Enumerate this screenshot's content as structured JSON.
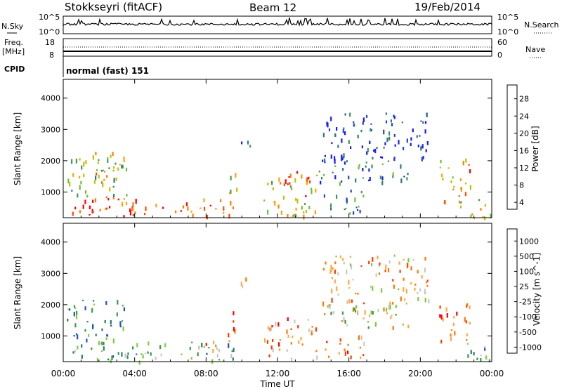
{
  "header": {
    "station": "Stokkseyri (fitACF)",
    "beam": "Beam 12",
    "date": "19/Feb/2014"
  },
  "noise_panel": {
    "left_label": "N.Sky",
    "right_label": "N.Search",
    "left_ticks": [
      "10^5",
      "10^0"
    ],
    "right_ticks": [
      "10^5",
      "10^0"
    ]
  },
  "freq_panel": {
    "left_label_1": "Freq.",
    "left_label_2": "[MHz]",
    "left_ticks": [
      "18",
      "8"
    ],
    "right_label": "Nave",
    "right_ticks": [
      "60",
      "0"
    ]
  },
  "cpid": {
    "label": "CPID",
    "mode": "normal (fast) 151"
  },
  "axes": {
    "xlabel": "Time UT",
    "ylabel": "Slant Range [km]",
    "xticks": [
      "00:00",
      "04:00",
      "08:00",
      "12:00",
      "16:00",
      "20:00",
      "00:00"
    ],
    "yticks": [
      "1000",
      "2000",
      "3000",
      "4000"
    ]
  },
  "chart_data": [
    {
      "type": "heatmap",
      "name": "power",
      "ylabel": "Slant Range [km]",
      "xlabel": "Time UT",
      "x_range_hours": [
        0,
        24
      ],
      "y_range_km": [
        180,
        4600
      ],
      "colorbar_label": "Power [dB]",
      "colorbar_ticks": [
        "28",
        "24",
        "20",
        "16",
        "12",
        "8",
        "4"
      ],
      "colorscale": [
        "#1a1aff",
        "#2a44c8",
        "#2e7d6e",
        "#3f9a55",
        "#6fbf3a",
        "#c2c000",
        "#ffa500",
        "#ff7f00",
        "#ff4a00",
        "#ff0000"
      ],
      "regions": [
        {
          "t": [
            0.0,
            5.7
          ],
          "r": [
            200,
            900
          ],
          "level": 0.85
        },
        {
          "t": [
            0.1,
            3.6
          ],
          "r": [
            900,
            2200
          ],
          "level": 0.45
        },
        {
          "t": [
            1.6,
            3.4
          ],
          "r": [
            1500,
            2300
          ],
          "level": 0.6
        },
        {
          "t": [
            6.2,
            9.6
          ],
          "r": [
            250,
            850
          ],
          "level": 0.85
        },
        {
          "t": [
            9.2,
            9.7
          ],
          "r": [
            1000,
            2100
          ],
          "level": 0.5
        },
        {
          "t": [
            9.8,
            10.5
          ],
          "r": [
            2400,
            2900
          ],
          "level": 0.15
        },
        {
          "t": [
            11.2,
            14.2
          ],
          "r": [
            250,
            1600
          ],
          "level": 0.55
        },
        {
          "t": [
            12.2,
            13.8
          ],
          "r": [
            800,
            1700
          ],
          "level": 0.85
        },
        {
          "t": [
            14.3,
            19.5
          ],
          "r": [
            1300,
            2100
          ],
          "level": 0.25
        },
        {
          "t": [
            14.5,
            20.5
          ],
          "r": [
            2000,
            3600
          ],
          "level": 0.1
        },
        {
          "t": [
            14.5,
            17.0
          ],
          "r": [
            300,
            1100
          ],
          "level": 0.3
        },
        {
          "t": [
            21.0,
            22.8
          ],
          "r": [
            700,
            2100
          ],
          "level": 0.7
        },
        {
          "t": [
            22.0,
            24.0
          ],
          "r": [
            200,
            800
          ],
          "level": 0.5
        }
      ]
    },
    {
      "type": "heatmap",
      "name": "velocity",
      "ylabel": "Slant Range [km]",
      "xlabel": "Time UT",
      "x_range_hours": [
        0,
        24
      ],
      "y_range_km": [
        180,
        4600
      ],
      "colorbar_label": "Velocity [m s^-1]",
      "colorbar_ticks": [
        "1000",
        "500",
        "100",
        "25",
        "-25",
        "-100",
        "-500",
        "-1000"
      ],
      "colorscale": [
        "#2050c0",
        "#2c7a6a",
        "#3a9a4a",
        "#7ccd3a",
        "#c8c8c8",
        "#ffaa40",
        "#ff7a00",
        "#ff3a00",
        "#ff0000"
      ],
      "regions": [
        {
          "t": [
            0.0,
            5.7
          ],
          "r": [
            200,
            900
          ],
          "v": 0.3
        },
        {
          "t": [
            0.1,
            3.6
          ],
          "r": [
            900,
            2200
          ],
          "v": 0.2
        },
        {
          "t": [
            6.2,
            9.6
          ],
          "r": [
            250,
            850
          ],
          "v": 0.3
        },
        {
          "t": [
            7.4,
            9.4
          ],
          "r": [
            450,
            900
          ],
          "v": 0.75
        },
        {
          "t": [
            9.2,
            9.7
          ],
          "r": [
            1000,
            2100
          ],
          "v": 0.8
        },
        {
          "t": [
            9.8,
            10.5
          ],
          "r": [
            2400,
            2900
          ],
          "v": 0.5
        },
        {
          "t": [
            11.2,
            14.2
          ],
          "r": [
            250,
            1600
          ],
          "v": 0.72
        },
        {
          "t": [
            14.3,
            19.5
          ],
          "r": [
            1300,
            2100
          ],
          "v": 0.5
        },
        {
          "t": [
            14.5,
            20.5
          ],
          "r": [
            2000,
            3600
          ],
          "v": 0.6
        },
        {
          "t": [
            14.5,
            17.0
          ],
          "r": [
            300,
            1100
          ],
          "v": 0.7
        },
        {
          "t": [
            21.0,
            22.8
          ],
          "r": [
            700,
            2100
          ],
          "v": 0.7
        },
        {
          "t": [
            22.0,
            24.0
          ],
          "r": [
            200,
            800
          ],
          "v": 0.3
        }
      ]
    }
  ]
}
